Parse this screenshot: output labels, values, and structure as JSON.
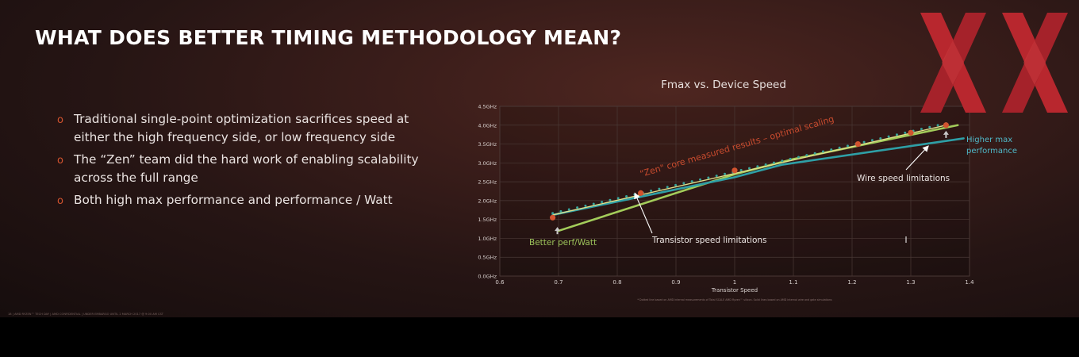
{
  "slide": {
    "title": "WHAT DOES BETTER TIMING METHODOLOGY MEAN?",
    "bullets": [
      "Traditional single-point optimization sacrifices speed at either the high frequency side, or low frequency side",
      "The “Zen” team did the hard work of enabling scalability across the full range",
      "Both high max performance and performance / Watt"
    ],
    "bullet_marker": "o",
    "footer": "18 | AMD RYZEN™ TECH DAY | AMD CONFIDENTIAL | UNDER EMBARGO UNTIL 2 MARCH 2017 @ 9:00 AM CST"
  },
  "colors": {
    "accent": "#d2532f",
    "zen_line": "#e0e08a",
    "zen_dots": "#38a39a",
    "zen_points": "#d2532f",
    "transistor_line": "#a3cc5a",
    "wire_line": "#2e9fa6",
    "annotation_orange": "#c84b2e",
    "annotation_blue": "#4fb8c8",
    "annotation_green": "#9cc25a",
    "logo_red": "#b8272e"
  },
  "chart_data": {
    "type": "line",
    "title": "Fmax vs. Device Speed",
    "xlabel": "Transistor Speed",
    "ylabel": "",
    "xlim": [
      0.6,
      1.4
    ],
    "ylim": [
      0,
      4.5
    ],
    "x_ticks": [
      "0.6",
      "0.7",
      "0.8",
      "0.9",
      "1",
      "1.1",
      "1.2",
      "1.3",
      "1.4"
    ],
    "y_ticks": [
      "0.0GHz",
      "0.5GHz",
      "1.0GHz",
      "1.5GHz",
      "2.0GHz",
      "2.5GHz",
      "3.0GHz",
      "3.5GHz",
      "4.0GHz",
      "4.5GHz"
    ],
    "grid": true,
    "series": [
      {
        "name": "\"Zen\" core measured results – optimal scaling",
        "x": [
          0.69,
          1.36
        ],
        "y": [
          1.62,
          4.0
        ]
      },
      {
        "name": "Transistor speed limitations",
        "x": [
          0.7,
          1.0,
          1.1,
          1.38
        ],
        "y": [
          1.2,
          2.7,
          3.1,
          4.0
        ]
      },
      {
        "name": "Wire speed limitations",
        "x": [
          0.69,
          1.0,
          1.08,
          1.39
        ],
        "y": [
          1.62,
          2.62,
          2.95,
          3.65
        ]
      }
    ],
    "measured_points": {
      "x": [
        0.69,
        0.84,
        1.0,
        1.21,
        1.3,
        1.36
      ],
      "y": [
        1.55,
        2.2,
        2.8,
        3.5,
        3.8,
        4.0
      ]
    },
    "annotations": {
      "zen": "\"Zen\" core measured results – optimal scaling",
      "transistor": "Transistor speed limitations",
      "wire": "Wire speed limitations",
      "higher_max_1": "Higher max",
      "higher_max_2": "performance",
      "better_perf": "Better perf/Watt"
    },
    "footnote": "* Dotted line based on AMD internal measurements of Total SCALE AMD Ryzen™ silicon. Solid lines based on AMD internal wire and gate simulations"
  }
}
